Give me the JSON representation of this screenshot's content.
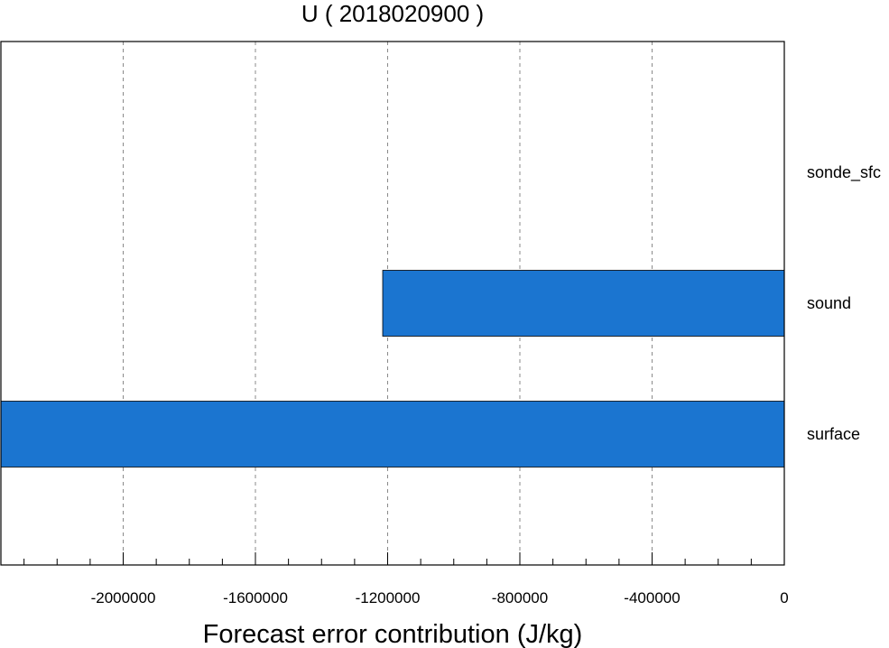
{
  "chart_data": {
    "type": "bar",
    "orientation": "horizontal",
    "title": "U ( 2018020900 )",
    "xlabel": "Forecast error contribution (J/kg)",
    "ylabel": "",
    "categories": [
      "sonde_sfc",
      "sound",
      "surface"
    ],
    "values": [
      0,
      -1215000,
      -2370000
    ],
    "xlim": [
      -2370000,
      0
    ],
    "xticks": [
      -2000000,
      -1600000,
      -1200000,
      -800000,
      -400000,
      0
    ],
    "xtick_labels": [
      "-2000000",
      "-1600000",
      "-1200000",
      "-800000",
      "-400000",
      "0"
    ],
    "minor_tick_step": 100000,
    "grid": "vertical-dashed",
    "bar_color": "#1b75d0",
    "legend": "none"
  }
}
